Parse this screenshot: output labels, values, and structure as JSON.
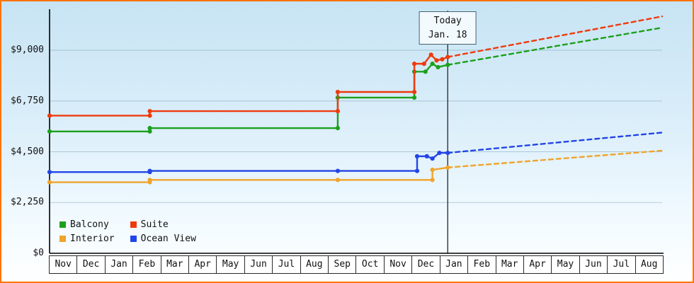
{
  "frame": {
    "border_color": "#ff7300"
  },
  "chart_data": {
    "type": "line",
    "title": "",
    "xlabel": "",
    "ylabel": "",
    "ylim": [
      0,
      10800
    ],
    "grid": true,
    "legend_position": "bottom-left",
    "x_month_count": 22,
    "x_months": [
      "Nov",
      "Dec",
      "Jan",
      "Feb",
      "Mar",
      "Apr",
      "May",
      "Jun",
      "Jul",
      "Aug",
      "Sep",
      "Oct",
      "Nov",
      "Dec",
      "Jan",
      "Feb",
      "Mar",
      "Apr",
      "May",
      "Jun",
      "Jul",
      "Aug"
    ],
    "y_ticks": [
      {
        "label": "$9,000",
        "value": 9000
      },
      {
        "label": "$6,750",
        "value": 6750
      },
      {
        "label": "$4,500",
        "value": 4500
      },
      {
        "label": "$2,250",
        "value": 2250
      },
      {
        "label": "$0",
        "value": 0
      }
    ],
    "today": {
      "label": "Today",
      "date": "Jan. 18",
      "month_index": 14.3
    },
    "series": [
      {
        "name": "Balcony",
        "color": "#1ca01c",
        "solid": [
          [
            0,
            5400
          ],
          [
            3.6,
            5400
          ],
          [
            3.6,
            5550
          ],
          [
            10.35,
            5550
          ],
          [
            10.35,
            6900
          ],
          [
            13.1,
            6900
          ],
          [
            13.1,
            8050
          ],
          [
            13.5,
            8050
          ],
          [
            13.75,
            8400
          ],
          [
            13.95,
            8250
          ],
          [
            14.3,
            8350
          ]
        ],
        "dashed": [
          [
            14.3,
            8350
          ],
          [
            22,
            10000
          ]
        ]
      },
      {
        "name": "Suite",
        "color": "#ee3b0e",
        "solid": [
          [
            0,
            6100
          ],
          [
            3.6,
            6100
          ],
          [
            3.6,
            6300
          ],
          [
            10.35,
            6300
          ],
          [
            10.35,
            7150
          ],
          [
            13.1,
            7150
          ],
          [
            13.1,
            8400
          ],
          [
            13.45,
            8400
          ],
          [
            13.7,
            8800
          ],
          [
            13.9,
            8550
          ],
          [
            14.1,
            8600
          ],
          [
            14.3,
            8700
          ]
        ],
        "dashed": [
          [
            14.3,
            8700
          ],
          [
            22,
            10500
          ]
        ]
      },
      {
        "name": "Interior",
        "color": "#f0a42c",
        "solid": [
          [
            0,
            3150
          ],
          [
            3.6,
            3150
          ],
          [
            3.6,
            3250
          ],
          [
            10.35,
            3250
          ],
          [
            13.75,
            3250
          ],
          [
            13.75,
            3700
          ],
          [
            14.3,
            3800
          ]
        ],
        "dashed": [
          [
            14.3,
            3800
          ],
          [
            22,
            4550
          ]
        ]
      },
      {
        "name": "Ocean View",
        "color": "#2245e6",
        "solid": [
          [
            0,
            3600
          ],
          [
            3.6,
            3600
          ],
          [
            3.6,
            3650
          ],
          [
            10.35,
            3650
          ],
          [
            13.2,
            3650
          ],
          [
            13.2,
            4300
          ],
          [
            13.55,
            4300
          ],
          [
            13.75,
            4200
          ],
          [
            14.0,
            4450
          ],
          [
            14.3,
            4450
          ]
        ],
        "dashed": [
          [
            14.3,
            4450
          ],
          [
            22,
            5350
          ]
        ]
      }
    ]
  }
}
